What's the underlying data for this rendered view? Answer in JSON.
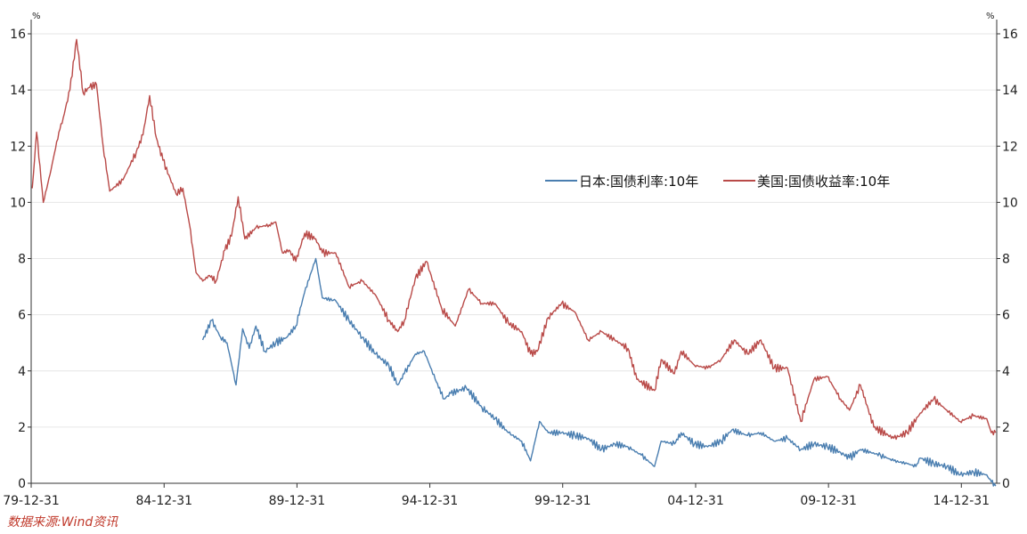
{
  "chart_data": {
    "type": "line",
    "title": "",
    "xlabel": "",
    "ylabel_left_unit": "%",
    "ylabel_right_unit": "%",
    "ylim": [
      0,
      16
    ],
    "yticks": [
      0,
      2,
      4,
      6,
      8,
      10,
      12,
      14,
      16
    ],
    "x_range": [
      "1979-12-31",
      "2016-04-30"
    ],
    "x_tick_labels": [
      "79-12-31",
      "84-12-31",
      "89-12-31",
      "94-12-31",
      "99-12-31",
      "04-12-31",
      "09-12-31",
      "14-12-31"
    ],
    "x_tick_dates": [
      "1979-12-31",
      "1984-12-31",
      "1989-12-31",
      "1994-12-31",
      "1999-12-31",
      "2004-12-31",
      "2009-12-31",
      "2014-12-31"
    ],
    "legend_position": "center-right",
    "grid": "horizontal",
    "series": [
      {
        "name": "日本:国债利率:10年",
        "color": "#4a7eb0",
        "x": [
          "1986-06",
          "1986-10",
          "1987-02",
          "1987-05",
          "1987-09",
          "1987-12",
          "1988-03",
          "1988-06",
          "1988-10",
          "1989-03",
          "1989-08",
          "1989-12",
          "1990-04",
          "1990-09",
          "1990-12",
          "1991-06",
          "1991-12",
          "1992-06",
          "1992-12",
          "1993-06",
          "1993-10",
          "1994-01",
          "1994-06",
          "1994-10",
          "1995-03",
          "1995-07",
          "1995-10",
          "1996-05",
          "1996-12",
          "1997-06",
          "1997-12",
          "1998-06",
          "1998-10",
          "1999-02",
          "1999-06",
          "1999-12",
          "2000-06",
          "2000-12",
          "2001-06",
          "2001-12",
          "2002-06",
          "2002-12",
          "2003-06",
          "2003-09",
          "2004-03",
          "2004-06",
          "2004-12",
          "2005-06",
          "2005-12",
          "2006-05",
          "2006-12",
          "2007-06",
          "2007-12",
          "2008-06",
          "2008-12",
          "2009-06",
          "2009-12",
          "2010-06",
          "2010-10",
          "2011-03",
          "2011-12",
          "2012-06",
          "2012-12",
          "2013-04",
          "2013-06",
          "2013-12",
          "2014-06",
          "2014-12",
          "2015-06",
          "2015-12",
          "2016-02",
          "2016-04"
        ],
        "y": [
          5.1,
          5.8,
          5.2,
          5.0,
          3.5,
          5.5,
          4.8,
          5.6,
          4.7,
          5.0,
          5.2,
          5.6,
          6.8,
          8.0,
          6.6,
          6.5,
          5.8,
          5.2,
          4.6,
          4.2,
          3.5,
          3.9,
          4.6,
          4.7,
          3.7,
          3.0,
          3.2,
          3.4,
          2.7,
          2.3,
          1.8,
          1.5,
          0.8,
          2.2,
          1.8,
          1.8,
          1.7,
          1.6,
          1.2,
          1.4,
          1.3,
          1.0,
          0.6,
          1.5,
          1.4,
          1.8,
          1.4,
          1.3,
          1.5,
          1.9,
          1.7,
          1.8,
          1.5,
          1.6,
          1.2,
          1.4,
          1.3,
          1.1,
          0.9,
          1.2,
          1.0,
          0.8,
          0.7,
          0.6,
          0.9,
          0.7,
          0.6,
          0.3,
          0.4,
          0.3,
          0.05,
          -0.1
        ]
      },
      {
        "name": "美国:国债收益率:10年",
        "color": "#b94a48",
        "x": [
          "1980-01",
          "1980-03",
          "1980-06",
          "1980-09",
          "1981-01",
          "1981-03",
          "1981-06",
          "1981-09",
          "1981-12",
          "1982-03",
          "1982-06",
          "1982-09",
          "1982-12",
          "1983-06",
          "1983-12",
          "1984-03",
          "1984-06",
          "1984-09",
          "1984-12",
          "1985-06",
          "1985-09",
          "1985-12",
          "1986-03",
          "1986-06",
          "1986-09",
          "1986-12",
          "1987-04",
          "1987-07",
          "1987-10",
          "1988-01",
          "1988-06",
          "1988-12",
          "1989-03",
          "1989-06",
          "1989-09",
          "1989-12",
          "1990-04",
          "1990-09",
          "1990-12",
          "1991-06",
          "1991-12",
          "1992-06",
          "1992-12",
          "1993-06",
          "1993-10",
          "1994-01",
          "1994-06",
          "1994-11",
          "1995-06",
          "1995-12",
          "1996-06",
          "1996-12",
          "1997-06",
          "1997-12",
          "1998-06",
          "1998-10",
          "1999-01",
          "1999-06",
          "1999-12",
          "2000-06",
          "2000-12",
          "2001-06",
          "2001-12",
          "2002-06",
          "2002-10",
          "2003-06",
          "2003-09",
          "2004-03",
          "2004-06",
          "2004-12",
          "2005-06",
          "2005-12",
          "2006-06",
          "2006-12",
          "2007-06",
          "2007-12",
          "2008-06",
          "2008-12",
          "2009-06",
          "2009-12",
          "2010-06",
          "2010-10",
          "2011-03",
          "2011-09",
          "2012-06",
          "2012-12",
          "2013-06",
          "2013-12",
          "2014-06",
          "2014-12",
          "2015-06",
          "2015-12",
          "2016-02",
          "2016-04"
        ],
        "y": [
          10.5,
          12.5,
          10.0,
          11.0,
          12.5,
          13.0,
          14.0,
          15.8,
          13.9,
          14.1,
          14.2,
          12.0,
          10.4,
          10.8,
          11.8,
          12.4,
          13.8,
          12.3,
          11.5,
          10.3,
          10.5,
          9.2,
          7.5,
          7.2,
          7.4,
          7.2,
          8.3,
          8.8,
          10.2,
          8.7,
          9.1,
          9.2,
          9.3,
          8.2,
          8.3,
          7.9,
          8.9,
          8.7,
          8.2,
          8.2,
          7.0,
          7.2,
          6.7,
          5.8,
          5.4,
          5.8,
          7.3,
          7.9,
          6.2,
          5.6,
          6.9,
          6.4,
          6.4,
          5.7,
          5.4,
          4.6,
          4.7,
          5.9,
          6.4,
          6.1,
          5.1,
          5.4,
          5.1,
          4.8,
          3.7,
          3.3,
          4.4,
          3.9,
          4.7,
          4.2,
          4.1,
          4.4,
          5.1,
          4.6,
          5.1,
          4.1,
          4.1,
          2.2,
          3.7,
          3.8,
          3.0,
          2.6,
          3.5,
          2.0,
          1.6,
          1.8,
          2.5,
          3.0,
          2.6,
          2.2,
          2.4,
          2.3,
          1.8,
          1.8
        ]
      }
    ]
  },
  "source_note": "数据来源:Wind资讯"
}
